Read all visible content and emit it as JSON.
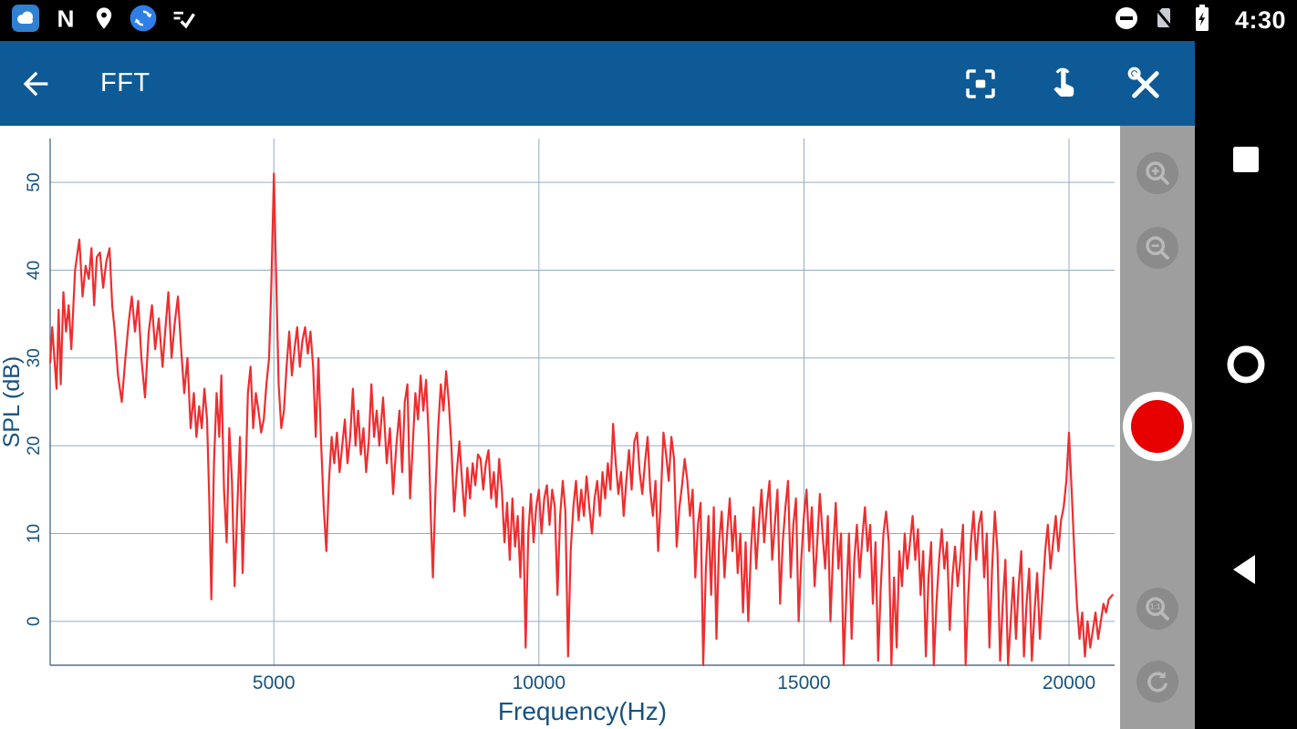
{
  "status_bar": {
    "time": "4:30",
    "left_icons": [
      {
        "name": "cloud-app-icon"
      },
      {
        "name": "n-app-icon",
        "glyph": "N"
      },
      {
        "name": "location-icon"
      },
      {
        "name": "sync-app-icon"
      },
      {
        "name": "check-list-icon"
      }
    ],
    "right_icons": [
      {
        "name": "do-not-disturb-icon"
      },
      {
        "name": "no-sim-icon"
      },
      {
        "name": "battery-charging-icon"
      }
    ]
  },
  "toolbar": {
    "title": "FFT",
    "background": "#0d5a96",
    "actions": [
      "back",
      "fullscreen",
      "touch-mode",
      "tools"
    ]
  },
  "chart_data": {
    "type": "line",
    "title": "",
    "xlabel": "Frequency(Hz)",
    "ylabel": "SPL (dB)",
    "xlim": [
      780,
      20860
    ],
    "ylim": [
      -5,
      55
    ],
    "x_ticks": [
      5000,
      10000,
      15000,
      20000
    ],
    "y_ticks": [
      0,
      10,
      20,
      30,
      40,
      50
    ],
    "grid": true,
    "legend": "none",
    "grid_color": "#93abc7",
    "axis_color": "#53718e",
    "label_color": "#17527e",
    "line_color": "#ee2e2e",
    "points": [
      [
        780,
        29.5
      ],
      [
        820,
        33.5
      ],
      [
        860,
        30
      ],
      [
        900,
        26.5
      ],
      [
        940,
        35.5
      ],
      [
        980,
        27
      ],
      [
        1030,
        37.5
      ],
      [
        1080,
        33
      ],
      [
        1130,
        36
      ],
      [
        1180,
        31
      ],
      [
        1250,
        40
      ],
      [
        1330,
        43.5
      ],
      [
        1390,
        37
      ],
      [
        1450,
        40.5
      ],
      [
        1510,
        39
      ],
      [
        1560,
        42.5
      ],
      [
        1610,
        36
      ],
      [
        1660,
        41.5
      ],
      [
        1720,
        42
      ],
      [
        1780,
        38
      ],
      [
        1840,
        41
      ],
      [
        1900,
        42.5
      ],
      [
        1950,
        36
      ],
      [
        2000,
        33
      ],
      [
        2060,
        28
      ],
      [
        2130,
        25
      ],
      [
        2200,
        30
      ],
      [
        2260,
        34
      ],
      [
        2320,
        37
      ],
      [
        2380,
        33
      ],
      [
        2440,
        36.5
      ],
      [
        2500,
        30
      ],
      [
        2570,
        25.5
      ],
      [
        2640,
        33
      ],
      [
        2700,
        36
      ],
      [
        2760,
        31
      ],
      [
        2830,
        34.5
      ],
      [
        2900,
        29
      ],
      [
        2950,
        33
      ],
      [
        3010,
        37.5
      ],
      [
        3070,
        30
      ],
      [
        3130,
        34
      ],
      [
        3190,
        37
      ],
      [
        3250,
        31
      ],
      [
        3310,
        26
      ],
      [
        3370,
        30
      ],
      [
        3430,
        22
      ],
      [
        3490,
        26
      ],
      [
        3540,
        21
      ],
      [
        3590,
        24.5
      ],
      [
        3640,
        22
      ],
      [
        3690,
        26.5
      ],
      [
        3740,
        23
      ],
      [
        3780,
        14
      ],
      [
        3820,
        2.5
      ],
      [
        3870,
        18
      ],
      [
        3920,
        26
      ],
      [
        3970,
        21
      ],
      [
        4010,
        28
      ],
      [
        4060,
        15
      ],
      [
        4110,
        9
      ],
      [
        4160,
        22
      ],
      [
        4210,
        16
      ],
      [
        4260,
        4
      ],
      [
        4310,
        13
      ],
      [
        4360,
        21
      ],
      [
        4410,
        5.5
      ],
      [
        4460,
        15
      ],
      [
        4510,
        26
      ],
      [
        4560,
        29
      ],
      [
        4610,
        22
      ],
      [
        4660,
        26
      ],
      [
        4710,
        24
      ],
      [
        4760,
        21.5
      ],
      [
        4810,
        23
      ],
      [
        4860,
        27
      ],
      [
        4910,
        30
      ],
      [
        4950,
        38
      ],
      [
        5000,
        51
      ],
      [
        5040,
        40
      ],
      [
        5090,
        27
      ],
      [
        5140,
        22
      ],
      [
        5190,
        24
      ],
      [
        5240,
        29
      ],
      [
        5290,
        33
      ],
      [
        5340,
        28
      ],
      [
        5390,
        31
      ],
      [
        5440,
        33.5
      ],
      [
        5490,
        29
      ],
      [
        5540,
        32
      ],
      [
        5590,
        33.5
      ],
      [
        5640,
        30.5
      ],
      [
        5690,
        33
      ],
      [
        5740,
        29
      ],
      [
        5790,
        21
      ],
      [
        5840,
        30
      ],
      [
        5890,
        20.5
      ],
      [
        5940,
        13
      ],
      [
        5990,
        8
      ],
      [
        6040,
        16
      ],
      [
        6090,
        21
      ],
      [
        6140,
        18
      ],
      [
        6190,
        21.5
      ],
      [
        6240,
        17
      ],
      [
        6290,
        20
      ],
      [
        6340,
        23
      ],
      [
        6390,
        18
      ],
      [
        6440,
        21
      ],
      [
        6490,
        26.5
      ],
      [
        6540,
        20
      ],
      [
        6590,
        24
      ],
      [
        6640,
        19
      ],
      [
        6690,
        22
      ],
      [
        6740,
        17
      ],
      [
        6790,
        20.5
      ],
      [
        6840,
        27
      ],
      [
        6890,
        21
      ],
      [
        6940,
        24
      ],
      [
        6990,
        20
      ],
      [
        7060,
        25.5
      ],
      [
        7130,
        18
      ],
      [
        7190,
        22
      ],
      [
        7250,
        14.5
      ],
      [
        7310,
        20
      ],
      [
        7370,
        24
      ],
      [
        7420,
        17
      ],
      [
        7470,
        25
      ],
      [
        7520,
        27
      ],
      [
        7570,
        14
      ],
      [
        7620,
        20
      ],
      [
        7670,
        26
      ],
      [
        7720,
        23
      ],
      [
        7770,
        28
      ],
      [
        7820,
        24
      ],
      [
        7870,
        27.5
      ],
      [
        7920,
        21
      ],
      [
        7960,
        12
      ],
      [
        8000,
        5
      ],
      [
        8050,
        15
      ],
      [
        8100,
        22
      ],
      [
        8150,
        27
      ],
      [
        8200,
        24
      ],
      [
        8250,
        28.5
      ],
      [
        8300,
        25
      ],
      [
        8350,
        20
      ],
      [
        8400,
        12.5
      ],
      [
        8450,
        17
      ],
      [
        8500,
        20.5
      ],
      [
        8550,
        16
      ],
      [
        8600,
        12
      ],
      [
        8650,
        17.5
      ],
      [
        8700,
        14
      ],
      [
        8750,
        18
      ],
      [
        8800,
        15.5
      ],
      [
        8850,
        19
      ],
      [
        8900,
        18.5
      ],
      [
        8950,
        15
      ],
      [
        9000,
        18
      ],
      [
        9050,
        19.5
      ],
      [
        9100,
        14
      ],
      [
        9150,
        17
      ],
      [
        9200,
        13
      ],
      [
        9250,
        18.5
      ],
      [
        9300,
        15
      ],
      [
        9350,
        9
      ],
      [
        9400,
        13.5
      ],
      [
        9450,
        7
      ],
      [
        9500,
        14
      ],
      [
        9550,
        8.5
      ],
      [
        9600,
        12
      ],
      [
        9650,
        5
      ],
      [
        9700,
        13
      ],
      [
        9750,
        -3
      ],
      [
        9800,
        10
      ],
      [
        9850,
        14.5
      ],
      [
        9900,
        9
      ],
      [
        9950,
        13
      ],
      [
        10000,
        15
      ],
      [
        10050,
        10
      ],
      [
        10100,
        14
      ],
      [
        10150,
        15.5
      ],
      [
        10200,
        11
      ],
      [
        10250,
        15
      ],
      [
        10300,
        13
      ],
      [
        10350,
        3
      ],
      [
        10400,
        12
      ],
      [
        10450,
        16
      ],
      [
        10500,
        12.5
      ],
      [
        10550,
        -4
      ],
      [
        10600,
        8
      ],
      [
        10650,
        13
      ],
      [
        10700,
        16
      ],
      [
        10750,
        11.5
      ],
      [
        10800,
        15
      ],
      [
        10850,
        12
      ],
      [
        10900,
        16.5
      ],
      [
        10950,
        13
      ],
      [
        11000,
        10
      ],
      [
        11050,
        14
      ],
      [
        11100,
        16
      ],
      [
        11150,
        12
      ],
      [
        11200,
        17
      ],
      [
        11250,
        14
      ],
      [
        11300,
        18
      ],
      [
        11350,
        15
      ],
      [
        11400,
        22.5
      ],
      [
        11450,
        18
      ],
      [
        11500,
        14.5
      ],
      [
        11550,
        17
      ],
      [
        11600,
        12
      ],
      [
        11650,
        16
      ],
      [
        11700,
        19.5
      ],
      [
        11750,
        15
      ],
      [
        11800,
        20.5
      ],
      [
        11850,
        21.5
      ],
      [
        11900,
        17
      ],
      [
        11950,
        14.5
      ],
      [
        12000,
        18
      ],
      [
        12050,
        21
      ],
      [
        12100,
        15
      ],
      [
        12150,
        12
      ],
      [
        12200,
        16
      ],
      [
        12250,
        8
      ],
      [
        12300,
        14
      ],
      [
        12350,
        21.5
      ],
      [
        12400,
        19
      ],
      [
        12450,
        16
      ],
      [
        12500,
        21
      ],
      [
        12550,
        18.5
      ],
      [
        12600,
        8.5
      ],
      [
        12650,
        13
      ],
      [
        12700,
        15.5
      ],
      [
        12750,
        18.5
      ],
      [
        12800,
        16
      ],
      [
        12850,
        12
      ],
      [
        12900,
        15
      ],
      [
        12950,
        5
      ],
      [
        13000,
        11
      ],
      [
        13050,
        13.5
      ],
      [
        13100,
        -5
      ],
      [
        13150,
        6
      ],
      [
        13200,
        12
      ],
      [
        13250,
        3
      ],
      [
        13300,
        13
      ],
      [
        13350,
        -2
      ],
      [
        13400,
        9
      ],
      [
        13450,
        12.5
      ],
      [
        13500,
        5
      ],
      [
        13550,
        10
      ],
      [
        13600,
        14
      ],
      [
        13650,
        8
      ],
      [
        13700,
        12
      ],
      [
        13750,
        5.5
      ],
      [
        13800,
        10
      ],
      [
        13850,
        1
      ],
      [
        13900,
        9
      ],
      [
        13950,
        0
      ],
      [
        14000,
        8
      ],
      [
        14050,
        13
      ],
      [
        14100,
        6
      ],
      [
        14150,
        11
      ],
      [
        14200,
        15
      ],
      [
        14250,
        9
      ],
      [
        14300,
        13
      ],
      [
        14350,
        16
      ],
      [
        14400,
        7
      ],
      [
        14450,
        11
      ],
      [
        14500,
        15
      ],
      [
        14550,
        2
      ],
      [
        14600,
        9
      ],
      [
        14650,
        13
      ],
      [
        14700,
        16
      ],
      [
        14750,
        5
      ],
      [
        14800,
        11
      ],
      [
        14850,
        14
      ],
      [
        14900,
        0
      ],
      [
        14950,
        7
      ],
      [
        15000,
        12
      ],
      [
        15050,
        15
      ],
      [
        15100,
        8
      ],
      [
        15150,
        13
      ],
      [
        15200,
        4
      ],
      [
        15250,
        9
      ],
      [
        15300,
        14.5
      ],
      [
        15350,
        10
      ],
      [
        15400,
        6
      ],
      [
        15450,
        12
      ],
      [
        15500,
        0
      ],
      [
        15550,
        8
      ],
      [
        15600,
        13.5
      ],
      [
        15650,
        6
      ],
      [
        15700,
        10
      ],
      [
        15750,
        -5
      ],
      [
        15800,
        3
      ],
      [
        15850,
        10
      ],
      [
        15900,
        -2
      ],
      [
        15950,
        7
      ],
      [
        16000,
        11
      ],
      [
        16050,
        5
      ],
      [
        16100,
        9.5
      ],
      [
        16150,
        13
      ],
      [
        16200,
        8
      ],
      [
        16250,
        11
      ],
      [
        16300,
        2
      ],
      [
        16350,
        9
      ],
      [
        16400,
        -4.5
      ],
      [
        16450,
        4
      ],
      [
        16500,
        10
      ],
      [
        16550,
        12.5
      ],
      [
        16600,
        9
      ],
      [
        16650,
        -5
      ],
      [
        16700,
        5
      ],
      [
        16750,
        -3
      ],
      [
        16800,
        8
      ],
      [
        16850,
        4
      ],
      [
        16900,
        10
      ],
      [
        16950,
        6
      ],
      [
        17000,
        9
      ],
      [
        17050,
        12
      ],
      [
        17100,
        7
      ],
      [
        17150,
        10.5
      ],
      [
        17200,
        3
      ],
      [
        17250,
        8
      ],
      [
        17300,
        -4
      ],
      [
        17350,
        5
      ],
      [
        17400,
        9
      ],
      [
        17450,
        -5
      ],
      [
        17500,
        2
      ],
      [
        17550,
        7
      ],
      [
        17600,
        10.5
      ],
      [
        17650,
        6
      ],
      [
        17700,
        9
      ],
      [
        17750,
        -1
      ],
      [
        17800,
        5
      ],
      [
        17850,
        8.5
      ],
      [
        17900,
        4
      ],
      [
        17950,
        7
      ],
      [
        18000,
        11
      ],
      [
        18050,
        -5
      ],
      [
        18100,
        3
      ],
      [
        18150,
        9
      ],
      [
        18200,
        12.5
      ],
      [
        18250,
        7
      ],
      [
        18300,
        11
      ],
      [
        18350,
        12.5
      ],
      [
        18400,
        5
      ],
      [
        18450,
        10
      ],
      [
        18500,
        -3
      ],
      [
        18550,
        6
      ],
      [
        18600,
        12.5
      ],
      [
        18650,
        8
      ],
      [
        18700,
        -4.5
      ],
      [
        18750,
        2
      ],
      [
        18800,
        7
      ],
      [
        18850,
        -5
      ],
      [
        18900,
        0
      ],
      [
        18950,
        5
      ],
      [
        19000,
        -2
      ],
      [
        19050,
        4
      ],
      [
        19100,
        8
      ],
      [
        19150,
        -4
      ],
      [
        19200,
        2
      ],
      [
        19250,
        6
      ],
      [
        19300,
        -4.5
      ],
      [
        19350,
        1
      ],
      [
        19400,
        5.5
      ],
      [
        19450,
        -2
      ],
      [
        19500,
        3
      ],
      [
        19550,
        8
      ],
      [
        19600,
        11
      ],
      [
        19650,
        6
      ],
      [
        19700,
        9
      ],
      [
        19750,
        12
      ],
      [
        19800,
        8
      ],
      [
        19850,
        11.5
      ],
      [
        19900,
        13
      ],
      [
        19950,
        16
      ],
      [
        20000,
        21.5
      ],
      [
        20050,
        15
      ],
      [
        20100,
        8
      ],
      [
        20150,
        2
      ],
      [
        20200,
        -2
      ],
      [
        20250,
        1
      ],
      [
        20300,
        -4
      ],
      [
        20350,
        0
      ],
      [
        20400,
        -3
      ],
      [
        20450,
        -1
      ],
      [
        20500,
        1
      ],
      [
        20550,
        -2
      ],
      [
        20600,
        0
      ],
      [
        20650,
        2
      ],
      [
        20700,
        1
      ],
      [
        20750,
        2.5
      ],
      [
        20820,
        3
      ]
    ]
  },
  "side_toolbar": {
    "background": "#9e9e9e",
    "button_color": "#8b8b8b",
    "glyph_color": "#b9b9b9",
    "one_to_one_label": "1:1",
    "record_color": "#e60000",
    "buttons": [
      "zoom-in",
      "zoom-out",
      "record",
      "zoom-one-to-one",
      "reset"
    ]
  },
  "nav_bar": {
    "buttons": [
      "recents",
      "home",
      "back"
    ]
  }
}
